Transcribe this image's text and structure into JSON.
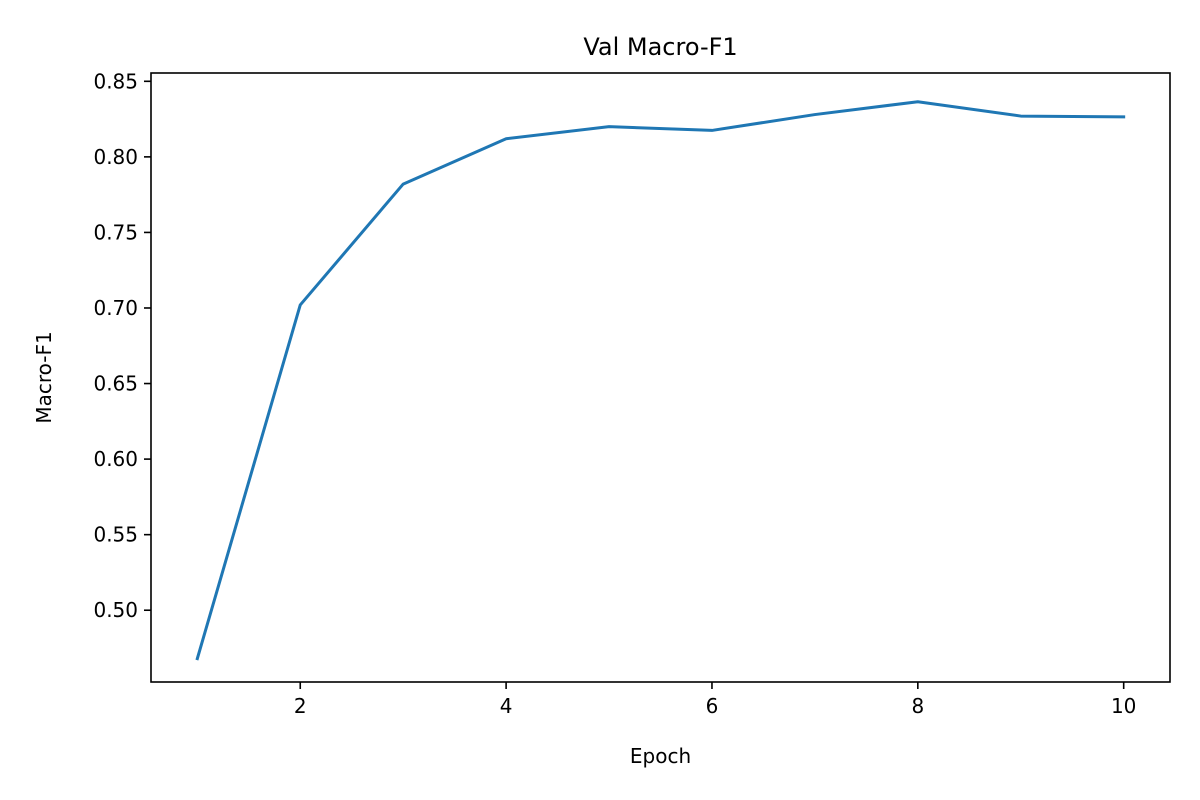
{
  "chart_data": {
    "type": "line",
    "title": "Val Macro-F1",
    "xlabel": "Epoch",
    "ylabel": "Macro-F1",
    "xlim": [
      0.55,
      10.45
    ],
    "ylim": [
      0.4525,
      0.8555
    ],
    "xticks": [
      2,
      4,
      6,
      8,
      10
    ],
    "xtick_labels": [
      "2",
      "4",
      "6",
      "8",
      "10"
    ],
    "yticks": [
      0.5,
      0.55,
      0.6,
      0.65,
      0.7,
      0.75,
      0.8,
      0.85
    ],
    "ytick_labels": [
      "0.50",
      "0.55",
      "0.60",
      "0.65",
      "0.70",
      "0.75",
      "0.80",
      "0.85"
    ],
    "grid": false,
    "series": [
      {
        "color": "#1f77b4",
        "x": [
          1,
          2,
          3,
          4,
          5,
          6,
          7,
          8,
          9,
          10
        ],
        "y": [
          0.468,
          0.702,
          0.782,
          0.812,
          0.82,
          0.8175,
          0.828,
          0.8365,
          0.827,
          0.8265
        ]
      }
    ]
  }
}
